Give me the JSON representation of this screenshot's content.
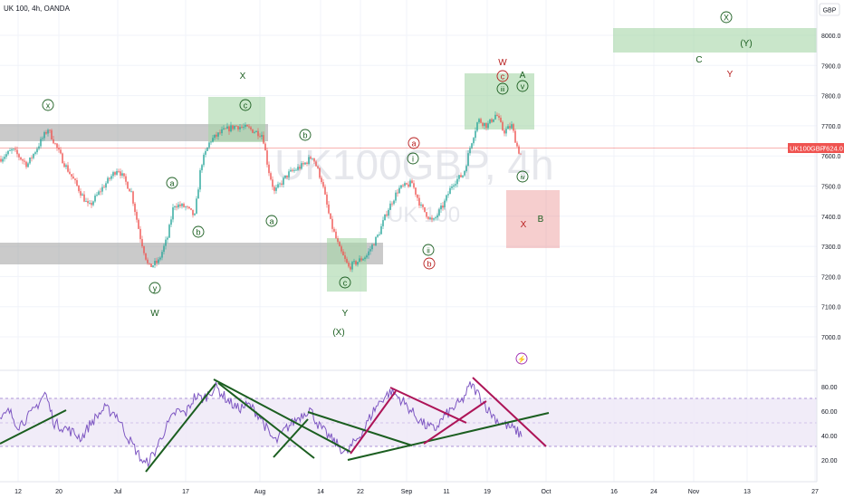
{
  "header": {
    "title": "UK 100, 4h, OANDA",
    "currency_button": "GBP"
  },
  "watermark": {
    "symbol": "UK100GBP, 4h",
    "name": "UK 100"
  },
  "price_label": {
    "symbol": "UK100GBP",
    "value": "7624.0"
  },
  "colors": {
    "up": "#26a69a",
    "down": "#ef5350",
    "green_zone": "#a5d6a7",
    "gray_zone": "#9e9e9e",
    "red_zone": "#e57373",
    "wave_green": "#1b5e20",
    "wave_red": "#b71c1c",
    "wave_purple": "#9c27b0",
    "rsi_line": "#7e57c2",
    "rsi_band": "#ede7f6",
    "trend_green": "#1b5e20",
    "trend_red": "#ad1457"
  },
  "x_ticks": [
    "12",
    "20",
    "Jul",
    "17",
    "Aug",
    "14",
    "22",
    "Sep",
    "11",
    "19",
    "Oct",
    "16",
    "24",
    "Nov",
    "13",
    "27"
  ],
  "price_ticks": [
    "8000.0",
    "7900.0",
    "7800.0",
    "7700.0",
    "7600.0",
    "7500.0",
    "7400.0",
    "7300.0",
    "7200.0",
    "7100.0",
    "7000.0"
  ],
  "rsi_ticks": [
    "80.00",
    "60.00",
    "40.00",
    "20.00"
  ],
  "wave_labels": {
    "x_circ": "x",
    "y_circ": "y",
    "W1": "W",
    "X1": "X",
    "a1": "a",
    "b1": "b",
    "c1": "c",
    "a2": "a",
    "b2": "b",
    "c2": "c",
    "Y1": "Y",
    "X_paren": "(X)",
    "a_red": "a",
    "i_circ": "i",
    "ii_circ": "ii",
    "b_red": "b",
    "W2": "W",
    "c_red": "c",
    "iii_circ": "iii",
    "A1": "A",
    "v_circ": "v",
    "iv_circ": "iv",
    "X_red": "X",
    "B1": "B",
    "C1": "C",
    "Y2": "Y",
    "X_top": "X",
    "Y_paren": "(Y)"
  }
}
